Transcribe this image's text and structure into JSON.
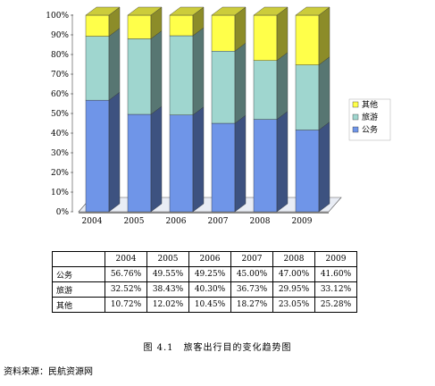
{
  "chart_data": {
    "type": "bar",
    "stacked": true,
    "percent": true,
    "categories": [
      "2004",
      "2005",
      "2006",
      "2007",
      "2008",
      "2009"
    ],
    "series": [
      {
        "name": "公务",
        "values": [
          56.76,
          49.55,
          49.25,
          45.0,
          47.0,
          41.6
        ],
        "color": "#6F95E8"
      },
      {
        "name": "旅游",
        "values": [
          32.52,
          38.43,
          40.3,
          36.73,
          29.95,
          33.12
        ],
        "color": "#9FD6CF"
      },
      {
        "name": "其他",
        "values": [
          10.72,
          12.02,
          10.45,
          18.27,
          23.05,
          25.28
        ],
        "color": "#FFFF4A"
      }
    ],
    "yticks": [
      "0%",
      "10%",
      "20%",
      "30%",
      "40%",
      "50%",
      "60%",
      "70%",
      "80%",
      "90%",
      "100%"
    ],
    "ylim": [
      0,
      100
    ],
    "legend_position": "right"
  },
  "table": {
    "header": [
      "",
      "2004",
      "2005",
      "2006",
      "2007",
      "2008",
      "2009"
    ],
    "rows": [
      [
        "公务",
        "56.76%",
        "49.55%",
        "49.25%",
        "45.00%",
        "47.00%",
        "41.60%"
      ],
      [
        "旅游",
        "32.52%",
        "38.43%",
        "40.30%",
        "36.73%",
        "29.95%",
        "33.12%"
      ],
      [
        "其他",
        "10.72%",
        "12.02%",
        "10.45%",
        "18.27%",
        "23.05%",
        "25.28%"
      ]
    ]
  },
  "caption": "图 4.1　旅客出行目的变化趋势图",
  "source": "资料来源：民航资源网"
}
